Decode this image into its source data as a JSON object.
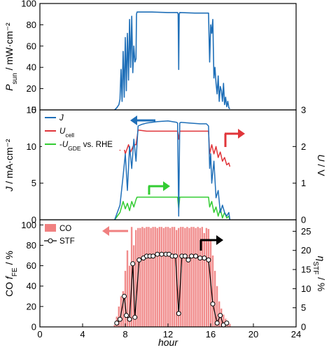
{
  "chart_data": [
    {
      "type": "line",
      "ylabel": {
        "main": "P",
        "sub": "sun",
        "rest": " / mW·cm⁻²"
      },
      "xlim": [
        0,
        24
      ],
      "ylim": [
        0,
        100
      ],
      "yticks": [
        "0",
        "20",
        "40",
        "60",
        "80",
        "100"
      ],
      "series": [
        {
          "color": "#1f6fb8",
          "x": [
            7.0,
            7.2,
            7.4,
            7.5,
            7.6,
            7.7,
            7.8,
            7.9,
            8.0,
            8.1,
            8.2,
            8.3,
            8.4,
            8.5,
            8.6,
            8.7,
            8.8,
            8.9,
            9.0,
            9.05,
            9.1,
            10.5,
            12.0,
            12.9,
            12.95,
            13.0,
            13.05,
            13.1,
            14.5,
            15.8,
            15.9,
            16.0,
            16.1,
            16.2,
            16.3,
            16.4,
            16.5,
            16.6,
            16.7,
            16.8,
            16.9,
            17.0,
            17.1,
            17.2,
            17.3,
            17.4,
            17.5,
            17.6,
            17.7,
            17.8
          ],
          "y": [
            0,
            2,
            5,
            10,
            38,
            8,
            55,
            12,
            68,
            18,
            72,
            28,
            85,
            40,
            88,
            35,
            60,
            45,
            48,
            90,
            92,
            92,
            91.5,
            91.5,
            90,
            38,
            90,
            91.5,
            91,
            91,
            45,
            80,
            72,
            85,
            30,
            40,
            25,
            15,
            32,
            8,
            22,
            18,
            8,
            25,
            5,
            12,
            3,
            8,
            2,
            1
          ]
        }
      ]
    },
    {
      "type": "line",
      "ylabel": {
        "main": "J",
        "rest": " / mA·cm⁻²"
      },
      "ylabel_right": {
        "main": "U",
        "rest": " / V"
      },
      "xlim": [
        0,
        24
      ],
      "ylim": [
        0,
        15
      ],
      "ylim_right": [
        0,
        3
      ],
      "yticks": [
        "0",
        "5",
        "10",
        "15"
      ],
      "yticks_right": [
        "0",
        "1",
        "2",
        "3"
      ],
      "legend": [
        {
          "parts": [
            {
              "t": "J",
              "i": true
            }
          ],
          "color": "#1f6fb8"
        },
        {
          "parts": [
            {
              "t": "U",
              "i": true
            },
            {
              "t": "cell",
              "sub": true
            }
          ],
          "color": "#e0353a"
        },
        {
          "parts": [
            {
              "t": "-"
            },
            {
              "t": "U",
              "i": true
            },
            {
              "t": "GDE",
              "sub": true
            },
            {
              "t": " vs. RHE"
            }
          ],
          "color": "#33cc33"
        }
      ],
      "series": [
        {
          "name": "J",
          "color": "#1f6fb8",
          "axis": "left",
          "x": [
            7.0,
            7.5,
            7.8,
            8.0,
            8.2,
            8.4,
            8.6,
            8.8,
            9.0,
            9.2,
            9.5,
            10.0,
            11.0,
            12.0,
            12.8,
            12.9,
            13.0,
            13.1,
            13.2,
            14.0,
            15.0,
            15.6,
            15.8,
            15.9,
            16.0,
            16.1,
            16.3,
            16.5,
            16.7,
            16.9,
            17.1,
            17.3,
            17.5,
            17.7,
            17.8
          ],
          "y": [
            0,
            2,
            6,
            9,
            4,
            10,
            7,
            11,
            8,
            12.8,
            13,
            13.2,
            13.4,
            13.5,
            13.3,
            13.2,
            0.5,
            13.2,
            13.3,
            13.2,
            13.1,
            13.1,
            12.8,
            7,
            9,
            5,
            8,
            3,
            4,
            1,
            2,
            1,
            0.5,
            1,
            0
          ]
        },
        {
          "name": "Ucell",
          "color": "#e0353a",
          "axis": "right",
          "x": [
            7.0,
            7.3,
            7.5,
            7.8,
            8.0,
            8.3,
            8.5,
            8.8,
            9.0,
            9.2,
            10.0,
            12.0,
            12.9,
            13.0,
            13.1,
            14.0,
            15.8,
            15.9,
            16.1,
            16.3,
            16.5,
            16.7,
            16.9,
            17.1,
            17.3,
            17.5,
            17.7,
            17.8
          ],
          "y": [
            2.2,
            2.1,
            1.9,
            2.1,
            1.8,
            2.05,
            1.85,
            2.05,
            2.05,
            2.45,
            2.42,
            2.42,
            2.42,
            2.2,
            2.42,
            2.42,
            2.42,
            1.8,
            2.05,
            1.8,
            2.0,
            1.7,
            1.85,
            1.6,
            1.7,
            1.5,
            1.55,
            1.45
          ]
        },
        {
          "name": "-UGDE vs. RHE",
          "color": "#33cc33",
          "axis": "right",
          "x": [
            7.0,
            7.5,
            7.8,
            8.0,
            8.2,
            8.4,
            8.6,
            8.8,
            9.0,
            9.1,
            10.0,
            12.0,
            12.9,
            13.0,
            13.1,
            14.0,
            15.8,
            15.9,
            16.1,
            16.3,
            16.5,
            16.7,
            16.9,
            17.1,
            17.3,
            17.5,
            17.7,
            17.8
          ],
          "y": [
            0,
            0.2,
            0.5,
            0.3,
            0.45,
            0.25,
            0.5,
            0.35,
            0.55,
            0.62,
            0.62,
            0.62,
            0.62,
            0.3,
            0.62,
            0.62,
            0.62,
            0.35,
            0.5,
            0.2,
            0.35,
            0.1,
            0.3,
            0.05,
            0.2,
            0.05,
            0.1,
            0
          ]
        }
      ]
    },
    {
      "type": "bar",
      "xlabel": "hour",
      "ylabel": {
        "pre": "CO ",
        "main": "f",
        "sub": "FE",
        "rest": " / %"
      },
      "ylabel_right": {
        "main": "η",
        "sub": "STF",
        "rest": " / %"
      },
      "xlim": [
        0,
        24
      ],
      "ylim": [
        0,
        105
      ],
      "ylim_right": [
        0,
        28
      ],
      "yticks": [
        "0",
        "20",
        "40",
        "60",
        "80",
        "100"
      ],
      "yticks_right": [
        "0",
        "5",
        "10",
        "15",
        "20",
        "25"
      ],
      "xticks": [
        "0",
        "4",
        "8",
        "12",
        "16",
        "20",
        "24"
      ],
      "legend": [
        {
          "parts": [
            {
              "t": "CO"
            }
          ],
          "color": "#f08080"
        },
        {
          "parts": [
            {
              "t": "STF"
            }
          ],
          "color": "#000000"
        }
      ],
      "co_fe": {
        "name": "CO",
        "color": "#f08080",
        "x": [
          7.0,
          7.2,
          7.4,
          7.6,
          7.8,
          8.0,
          8.2,
          8.4,
          8.6,
          8.8,
          9.0,
          9.2,
          9.4,
          9.6,
          9.8,
          10.0,
          10.2,
          10.4,
          10.6,
          10.8,
          11.0,
          11.2,
          11.4,
          11.6,
          11.8,
          12.0,
          12.2,
          12.4,
          12.6,
          12.8,
          13.0,
          13.2,
          13.4,
          13.6,
          13.8,
          14.0,
          14.2,
          14.4,
          14.6,
          14.8,
          15.0,
          15.2,
          15.4,
          15.6,
          15.8,
          16.0,
          16.2,
          16.4,
          16.6,
          16.8,
          17.0,
          17.2,
          17.4,
          17.6,
          17.8
        ],
        "values": [
          2,
          10,
          20,
          30,
          35,
          55,
          75,
          60,
          98,
          80,
          95,
          97,
          97,
          98,
          97,
          98,
          98,
          97,
          98,
          98,
          97,
          98,
          98,
          97,
          98,
          98,
          97,
          98,
          98,
          95,
          97,
          98,
          98,
          97,
          98,
          97,
          98,
          98,
          97,
          98,
          97,
          98,
          92,
          97,
          96,
          85,
          70,
          55,
          40,
          25,
          18,
          12,
          8,
          5,
          3
        ]
      },
      "stf": {
        "name": "STF",
        "color": "#000000",
        "x": [
          7.2,
          7.5,
          7.9,
          8.1,
          8.4,
          8.7,
          8.9,
          9.3,
          9.7,
          10.0,
          10.3,
          10.6,
          11.0,
          11.4,
          11.8,
          12.1,
          12.4,
          12.7,
          13.0,
          13.3,
          13.6,
          13.9,
          14.2,
          14.6,
          15.0,
          15.4,
          15.8,
          16.2,
          16.6,
          16.9,
          17.2,
          17.5
        ],
        "values": [
          1,
          2,
          8,
          3,
          2,
          16.5,
          2.5,
          17.5,
          18,
          18.5,
          18.5,
          18.5,
          19,
          19,
          19,
          19,
          18.5,
          18.5,
          3.5,
          18.5,
          18.5,
          17.5,
          18.5,
          18.5,
          18,
          18,
          17.5,
          6,
          1,
          3,
          0.5,
          1
        ]
      }
    }
  ]
}
